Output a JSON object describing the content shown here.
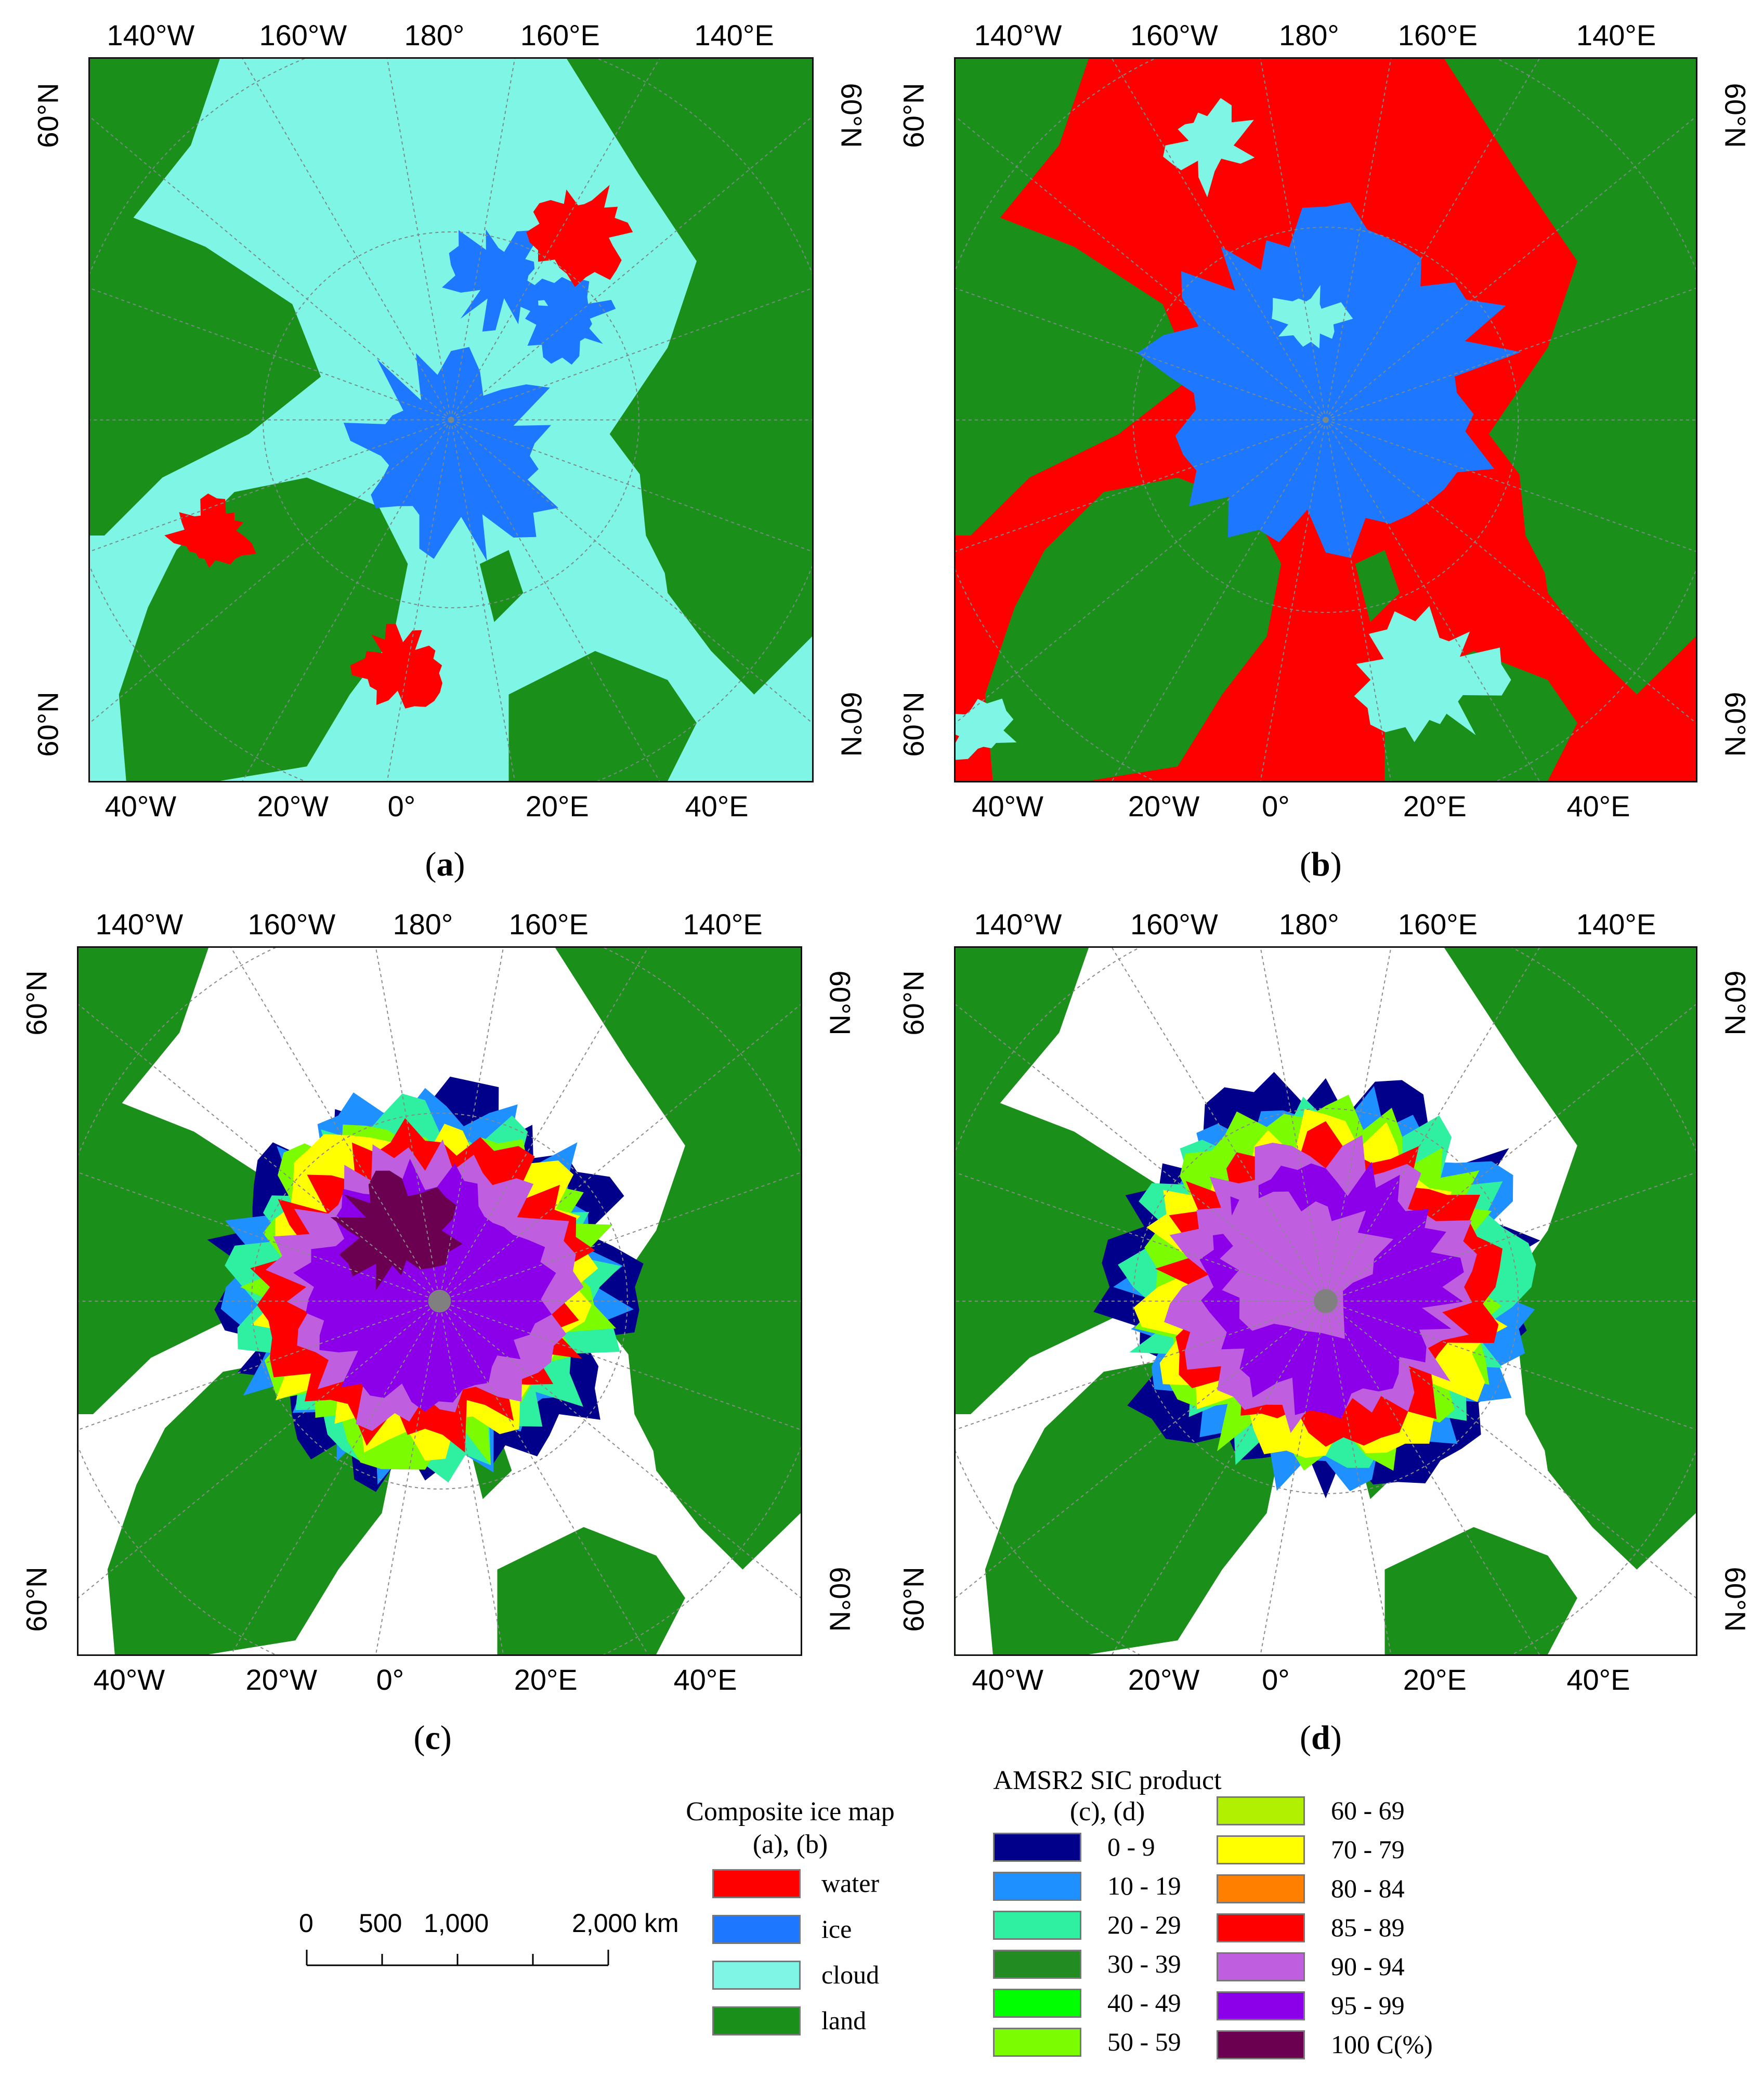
{
  "panels": [
    {
      "id": "a",
      "caption_open": "(",
      "caption_letter": "a",
      "caption_close": ")",
      "top_ticks": [
        "140°W",
        "160°W",
        "180°",
        "160°E",
        "140°E"
      ],
      "bottom_ticks": [
        "40°W",
        "20°W",
        "0°",
        "20°E",
        "40°E"
      ],
      "left_ticks": [
        "60°N",
        "60°N"
      ],
      "right_ticks": [
        "60°N",
        "60°N"
      ],
      "style": "classified"
    },
    {
      "id": "b",
      "caption_open": "(",
      "caption_letter": "b",
      "caption_close": ")",
      "top_ticks": [
        "140°W",
        "160°W",
        "180°",
        "160°E",
        "140°E"
      ],
      "bottom_ticks": [
        "40°W",
        "20°W",
        "0°",
        "20°E",
        "40°E"
      ],
      "left_ticks": [
        "60°N",
        "60°N"
      ],
      "right_ticks": [
        "60°N",
        "60°N"
      ],
      "style": "classified"
    },
    {
      "id": "c",
      "caption_open": "(",
      "caption_letter": "c",
      "caption_close": ")",
      "top_ticks": [
        "140°W",
        "160°W",
        "180°",
        "160°E",
        "140°E"
      ],
      "bottom_ticks": [
        "40°W",
        "20°W",
        "0°",
        "20°E",
        "40°E"
      ],
      "left_ticks": [
        "60°N",
        "60°N"
      ],
      "right_ticks": [
        "60°N",
        "60°N"
      ],
      "style": "sic"
    },
    {
      "id": "d",
      "caption_open": "(",
      "caption_letter": "d",
      "caption_close": ")",
      "top_ticks": [
        "140°W",
        "160°W",
        "180°",
        "160°E",
        "140°E"
      ],
      "bottom_ticks": [
        "40°W",
        "20°W",
        "0°",
        "20°E",
        "40°E"
      ],
      "left_ticks": [
        "60°N",
        "60°N"
      ],
      "right_ticks": [
        "60°N",
        "60°N"
      ],
      "style": "sic"
    }
  ],
  "composite_legend": {
    "title": "Composite ice map",
    "subtitle": "(a), (b)",
    "items": [
      {
        "label": "water",
        "color": "#ff0000"
      },
      {
        "label": "ice",
        "color": "#1e78ff"
      },
      {
        "label": "cloud",
        "color": "#7ff5e6"
      },
      {
        "label": "land",
        "color": "#1a8f1a"
      }
    ]
  },
  "sic_legend": {
    "title": "AMSR2 SIC product",
    "subtitle": "(c), (d)",
    "items": [
      {
        "label": "0 - 9",
        "color": "#00008b"
      },
      {
        "label": "10 - 19",
        "color": "#1e90ff"
      },
      {
        "label": "20 - 29",
        "color": "#2ef0a0"
      },
      {
        "label": "30 - 39",
        "color": "#228b22"
      },
      {
        "label": "40 - 49",
        "color": "#00ff00"
      },
      {
        "label": "50 - 59",
        "color": "#7cfc00"
      },
      {
        "label": "60 - 69",
        "color": "#b0f000"
      },
      {
        "label": "70 - 79",
        "color": "#ffff00"
      },
      {
        "label": "80 - 84",
        "color": "#ff7f00"
      },
      {
        "label": "85 - 89",
        "color": "#ff0000"
      },
      {
        "label": "90 - 94",
        "color": "#bf5fdf"
      },
      {
        "label": "95 - 99",
        "color": "#8b00e8"
      },
      {
        "label": "100  C(%)",
        "color": "#6b0050"
      }
    ]
  },
  "scale_bar": {
    "labels": [
      "0",
      "500",
      "1,000",
      "2,000 km"
    ]
  },
  "colors": {
    "land": "#1a8f1a",
    "water": "#ff0000",
    "ice": "#1e78ff",
    "cloud": "#7ff5e6",
    "background": "#ffffff",
    "pole": "#808080"
  }
}
